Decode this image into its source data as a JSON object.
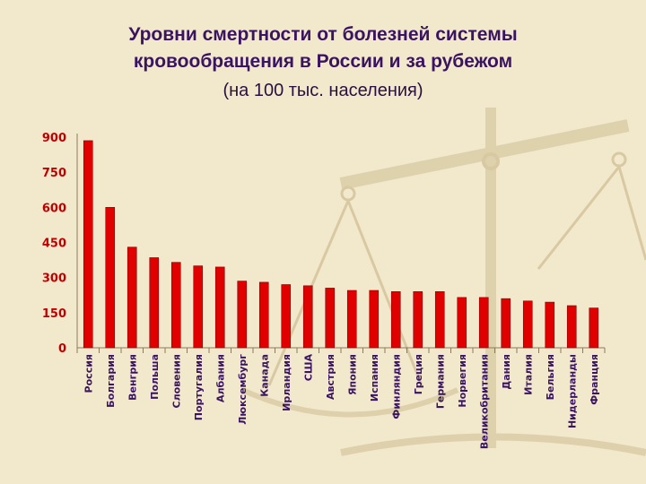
{
  "title_line1": "Уровни смертности от болезней системы",
  "title_line2": "кровообращения в России и за рубежом",
  "subtitle": "(на 100 тыс. населения)",
  "colors": {
    "bar": "#e00000",
    "bar_edge": "#8a0000",
    "tick_label": "#c00000",
    "axis_label": "#3a1460"
  },
  "chart_data": {
    "type": "bar",
    "title": "Уровни смертности от болезней системы кровообращения в России и за рубежом",
    "subtitle": "(на 100 тыс. населения)",
    "categories": [
      "Россия",
      "Болгария",
      "Венгрия",
      "Польша",
      "Словения",
      "Португалия",
      "Албания",
      "Люксембург",
      "Канада",
      "Ирландия",
      "США",
      "Австрия",
      "Япония",
      "Испания",
      "Финляндия",
      "Греция",
      "Германия",
      "Норвегия",
      "Великобритания",
      "Дания",
      "Италия",
      "Бельгия",
      "Нидерланды",
      "Франция"
    ],
    "values": [
      885,
      600,
      430,
      385,
      365,
      350,
      345,
      285,
      280,
      270,
      265,
      255,
      245,
      245,
      240,
      240,
      240,
      215,
      215,
      210,
      200,
      195,
      180,
      170
    ],
    "yticks": [
      0,
      150,
      300,
      450,
      600,
      750,
      900
    ],
    "ylim": [
      0,
      900
    ],
    "grid": false
  }
}
